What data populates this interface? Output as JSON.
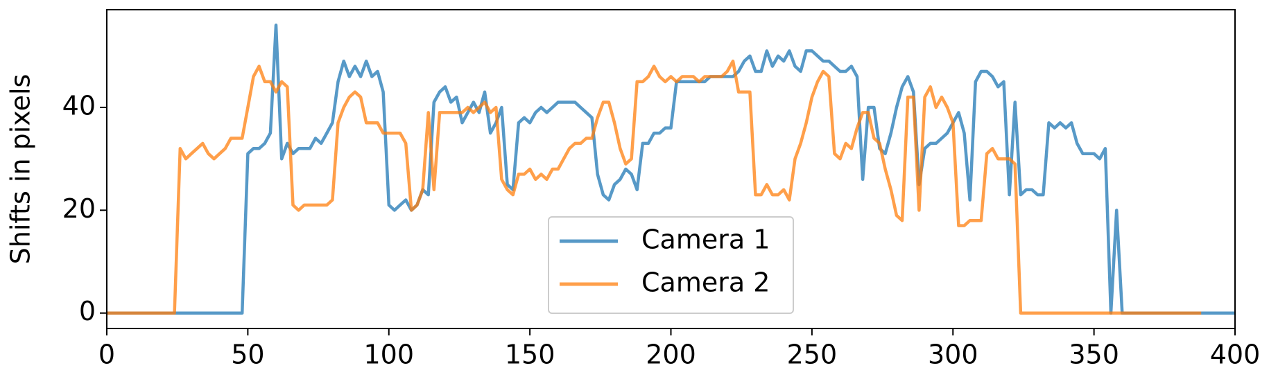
{
  "chart_data": {
    "type": "line",
    "ylabel": "Shifts in pixels",
    "xlim": [
      0,
      400
    ],
    "ylim": [
      -3,
      59
    ],
    "xticks": [
      0,
      50,
      100,
      150,
      200,
      250,
      300,
      350,
      400
    ],
    "yticks": [
      0,
      20,
      40
    ],
    "legend": "lower center",
    "x": [
      0,
      2,
      4,
      6,
      8,
      10,
      12,
      14,
      16,
      18,
      20,
      22,
      24,
      26,
      28,
      30,
      32,
      34,
      36,
      38,
      40,
      42,
      44,
      46,
      48,
      50,
      52,
      54,
      56,
      58,
      60,
      62,
      64,
      66,
      68,
      70,
      72,
      74,
      76,
      78,
      80,
      82,
      84,
      86,
      88,
      90,
      92,
      94,
      96,
      98,
      100,
      102,
      104,
      106,
      108,
      110,
      112,
      114,
      116,
      118,
      120,
      122,
      124,
      126,
      128,
      130,
      132,
      134,
      136,
      138,
      140,
      142,
      144,
      146,
      148,
      150,
      152,
      154,
      156,
      158,
      160,
      162,
      164,
      166,
      168,
      170,
      172,
      174,
      176,
      178,
      180,
      182,
      184,
      186,
      188,
      190,
      192,
      194,
      196,
      198,
      200,
      202,
      204,
      206,
      208,
      210,
      212,
      214,
      216,
      218,
      220,
      222,
      224,
      226,
      228,
      230,
      232,
      234,
      236,
      238,
      240,
      242,
      244,
      246,
      248,
      250,
      252,
      254,
      256,
      258,
      260,
      262,
      264,
      266,
      268,
      270,
      272,
      274,
      276,
      278,
      280,
      282,
      284,
      286,
      288,
      290,
      292,
      294,
      296,
      298,
      300,
      302,
      304,
      306,
      308,
      310,
      312,
      314,
      316,
      318,
      320,
      322,
      324,
      326,
      328,
      330,
      332,
      334,
      336,
      338,
      340,
      342,
      344,
      346,
      348,
      350,
      352,
      354,
      356,
      358,
      360,
      362,
      364,
      366,
      368,
      370,
      372,
      374,
      376,
      378,
      380,
      382,
      384,
      386,
      388,
      390,
      392,
      394,
      396,
      398,
      400
    ],
    "series": [
      {
        "name": "Camera 1",
        "color": "#1f77b4",
        "values": [
          0,
          0,
          0,
          0,
          0,
          0,
          0,
          0,
          0,
          0,
          0,
          0,
          0,
          0,
          0,
          0,
          0,
          0,
          0,
          0,
          0,
          0,
          0,
          0,
          0,
          31,
          32,
          32,
          33,
          35,
          56,
          30,
          33,
          31,
          32,
          32,
          32,
          34,
          33,
          35,
          37,
          45,
          49,
          46,
          48,
          46,
          49,
          46,
          47,
          43,
          21,
          20,
          21,
          22,
          20,
          21,
          24,
          23,
          41,
          43,
          44,
          41,
          42,
          37,
          39,
          41,
          39,
          43,
          35,
          37,
          40,
          25,
          24,
          37,
          38,
          37,
          39,
          40,
          39,
          40,
          41,
          41,
          41,
          41,
          40,
          39,
          38,
          27,
          23,
          22,
          25,
          26,
          28,
          27,
          24,
          33,
          33,
          35,
          35,
          36,
          36,
          45,
          45,
          45,
          45,
          45,
          45,
          46,
          46,
          46,
          46,
          46,
          47,
          49,
          50,
          47,
          47,
          51,
          48,
          50,
          49,
          51,
          48,
          47,
          51,
          51,
          50,
          49,
          49,
          48,
          47,
          47,
          48,
          46,
          26,
          40,
          40,
          32,
          31,
          35,
          40,
          44,
          46,
          43,
          25,
          32,
          33,
          33,
          34,
          35,
          37,
          39,
          35,
          22,
          45,
          47,
          47,
          46,
          44,
          45,
          23,
          41,
          23,
          24,
          24,
          23,
          23,
          37,
          36,
          37,
          36,
          37,
          33,
          31,
          31,
          31,
          30,
          32,
          0,
          20,
          0,
          0,
          0,
          0,
          0,
          0,
          0,
          0,
          0,
          0,
          0,
          0,
          0,
          0,
          0,
          0,
          0,
          0,
          0,
          0,
          0
        ]
      },
      {
        "name": "Camera 2",
        "color": "#ff7f0e",
        "values": [
          0,
          0,
          0,
          0,
          0,
          0,
          0,
          0,
          0,
          0,
          0,
          0,
          0,
          32,
          30,
          31,
          32,
          33,
          31,
          30,
          31,
          32,
          34,
          34,
          34,
          40,
          46,
          48,
          45,
          45,
          43,
          45,
          44,
          21,
          20,
          21,
          21,
          21,
          21,
          21,
          22,
          37,
          40,
          42,
          43,
          42,
          37,
          37,
          37,
          35,
          35,
          35,
          35,
          33,
          20,
          21,
          24,
          39,
          24,
          39,
          39,
          39,
          39,
          39,
          40,
          39,
          40,
          41,
          39,
          40,
          26,
          24,
          23,
          27,
          27,
          28,
          26,
          27,
          26,
          28,
          28,
          30,
          32,
          33,
          33,
          34,
          34,
          38,
          41,
          41,
          37,
          32,
          29,
          30,
          45,
          45,
          46,
          48,
          46,
          45,
          46,
          45,
          46,
          46,
          46,
          45,
          46,
          46,
          46,
          46,
          47,
          49,
          43,
          43,
          43,
          23,
          23,
          25,
          23,
          23,
          24,
          22,
          30,
          33,
          37,
          42,
          45,
          47,
          46,
          31,
          30,
          33,
          32,
          36,
          39,
          39,
          34,
          33,
          28,
          24,
          19,
          18,
          42,
          42,
          20,
          42,
          44,
          40,
          42,
          40,
          37,
          17,
          17,
          18,
          18,
          18,
          31,
          32,
          30,
          30,
          30,
          29,
          0,
          0,
          0,
          0,
          0,
          0,
          0,
          0,
          0,
          0,
          0,
          0,
          0,
          0,
          0,
          0,
          0,
          0,
          0,
          0,
          0,
          0,
          0,
          0,
          0,
          0,
          0,
          0,
          0,
          0,
          0,
          0,
          0,
          null,
          null,
          null,
          null,
          null,
          null
        ]
      }
    ]
  }
}
